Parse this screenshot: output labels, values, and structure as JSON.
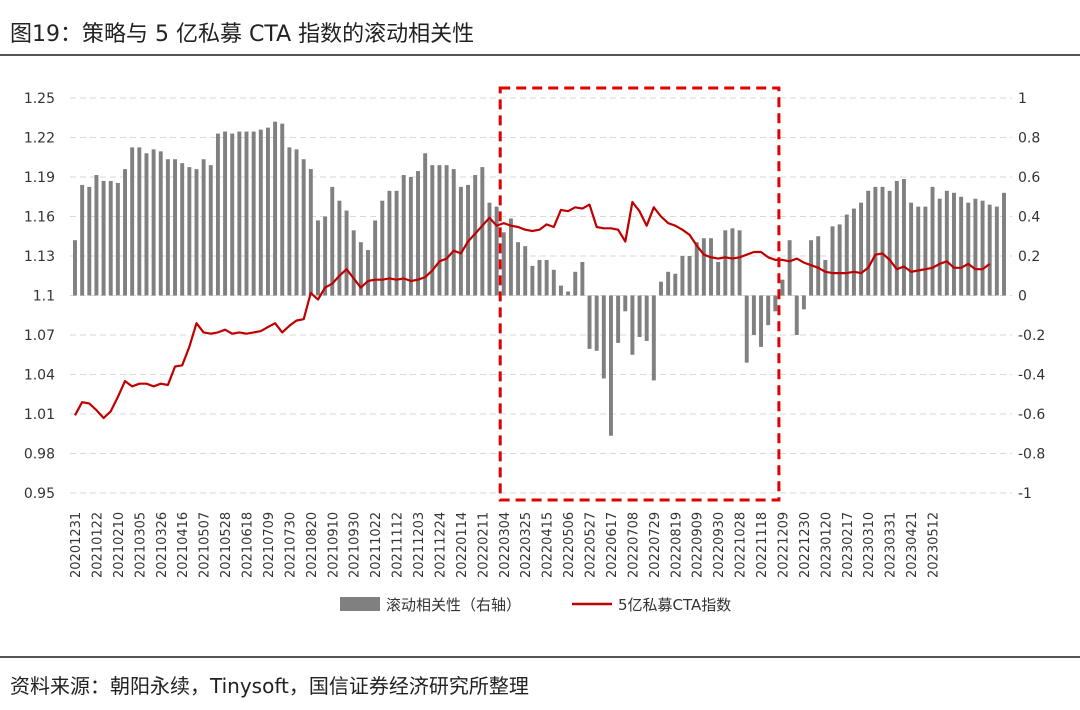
{
  "title": "图19：策略与 5 亿私募 CTA 指数的滚动相关性",
  "source": "资料来源：朝阳永续，Tinysoft，国信证券经济研究所整理",
  "chart_data": {
    "type": "bar+line",
    "left_axis": {
      "ticks": [
        "1.25",
        "1.22",
        "1.19",
        "1.16",
        "1.13",
        "1.1",
        "1.07",
        "1.04",
        "1.01",
        "0.98",
        "0.95"
      ],
      "ylim": [
        0.95,
        1.25
      ]
    },
    "right_axis": {
      "ticks": [
        "1",
        "0.8",
        "0.6",
        "0.4",
        "0.2",
        "0",
        "-0.2",
        "-0.4",
        "-0.6",
        "-0.8",
        "-1"
      ],
      "ylim": [
        -1,
        1
      ]
    },
    "x_tick_labels": [
      "20201231",
      "20210122",
      "20210210",
      "20210305",
      "20210326",
      "20210416",
      "20210507",
      "20210528",
      "20210618",
      "20210709",
      "20210730",
      "20210820",
      "20210910",
      "20210930",
      "20211022",
      "20211112",
      "20211203",
      "20211224",
      "20220114",
      "20220211",
      "20220304",
      "20220325",
      "20220415",
      "20220506",
      "20220527",
      "20220617",
      "20220708",
      "20220729",
      "20220819",
      "20220909",
      "20220930",
      "20221028",
      "20221118",
      "20221209",
      "20221230",
      "20230120",
      "20230217",
      "20230310",
      "20230331",
      "20230421",
      "20230512"
    ],
    "series": [
      {
        "name": "滚动相关性（右轴）",
        "type": "bar",
        "axis": "right",
        "color": "#808080",
        "values": [
          0.28,
          0.56,
          0.55,
          0.61,
          0.58,
          0.58,
          0.57,
          0.64,
          0.75,
          0.75,
          0.72,
          0.74,
          0.73,
          0.69,
          0.69,
          0.67,
          0.65,
          0.64,
          0.69,
          0.66,
          0.82,
          0.83,
          0.82,
          0.83,
          0.83,
          0.83,
          0.84,
          0.85,
          0.88,
          0.87,
          0.75,
          0.74,
          0.69,
          0.64,
          0.38,
          0.4,
          0.55,
          0.48,
          0.43,
          0.33,
          0.27,
          0.23,
          0.38,
          0.48,
          0.53,
          0.53,
          0.61,
          0.6,
          0.63,
          0.72,
          0.66,
          0.66,
          0.66,
          0.64,
          0.55,
          0.56,
          0.61,
          0.65,
          0.47,
          0.45,
          0.32,
          0.39,
          0.27,
          0.25,
          0.15,
          0.18,
          0.18,
          0.13,
          0.05,
          0.02,
          0.12,
          0.17,
          -0.27,
          -0.28,
          -0.42,
          -0.71,
          -0.24,
          -0.08,
          -0.3,
          -0.21,
          -0.23,
          -0.43,
          0.07,
          0.12,
          0.11,
          0.2,
          0.2,
          0.27,
          0.29,
          0.29,
          0.17,
          0.33,
          0.34,
          0.33,
          -0.34,
          -0.2,
          -0.26,
          -0.15,
          -0.08,
          0.08,
          0.28,
          -0.2,
          -0.07,
          0.28,
          0.3,
          0.18,
          0.35,
          0.36,
          0.41,
          0.44,
          0.47,
          0.53,
          0.55,
          0.55,
          0.53,
          0.58,
          0.59,
          0.47,
          0.45,
          0.45,
          0.55,
          0.49,
          0.53,
          0.52,
          0.5,
          0.47,
          0.49,
          0.48,
          0.46,
          0.45,
          0.52
        ]
      },
      {
        "name": "5亿私募CTA指数",
        "type": "line",
        "axis": "left",
        "color": "#c00000",
        "values": [
          1.009,
          1.019,
          1.018,
          1.013,
          1.007,
          1.012,
          1.023,
          1.035,
          1.031,
          1.033,
          1.033,
          1.031,
          1.033,
          1.032,
          1.046,
          1.047,
          1.061,
          1.079,
          1.072,
          1.071,
          1.072,
          1.074,
          1.071,
          1.072,
          1.071,
          1.072,
          1.073,
          1.076,
          1.079,
          1.072,
          1.077,
          1.081,
          1.082,
          1.102,
          1.097,
          1.106,
          1.109,
          1.115,
          1.12,
          1.113,
          1.106,
          1.111,
          1.112,
          1.112,
          1.113,
          1.112,
          1.113,
          1.111,
          1.112,
          1.114,
          1.119,
          1.126,
          1.128,
          1.134,
          1.132,
          1.141,
          1.147,
          1.153,
          1.159,
          1.153,
          1.155,
          1.153,
          1.152,
          1.15,
          1.149,
          1.15,
          1.154,
          1.152,
          1.165,
          1.164,
          1.167,
          1.166,
          1.169,
          1.152,
          1.151,
          1.151,
          1.15,
          1.141,
          1.171,
          1.164,
          1.153,
          1.167,
          1.16,
          1.155,
          1.153,
          1.15,
          1.146,
          1.138,
          1.131,
          1.129,
          1.128,
          1.129,
          1.128,
          1.129,
          1.131,
          1.133,
          1.133,
          1.129,
          1.127,
          1.127,
          1.126,
          1.128,
          1.125,
          1.123,
          1.121,
          1.118,
          1.117,
          1.117,
          1.117,
          1.118,
          1.117,
          1.121,
          1.131,
          1.132,
          1.127,
          1.12,
          1.122,
          1.118,
          1.119,
          1.12,
          1.121,
          1.124,
          1.126,
          1.121,
          1.121,
          1.124,
          1.12,
          1.12,
          1.124
        ]
      }
    ],
    "highlight_box": {
      "from_category": "20220304",
      "to_category": "20221209",
      "style": "dashed",
      "color": "#e00000"
    },
    "legend": {
      "position": "bottom",
      "entries": [
        "滚动相关性（右轴）",
        "5亿私募CTA指数"
      ]
    },
    "grid": true
  }
}
